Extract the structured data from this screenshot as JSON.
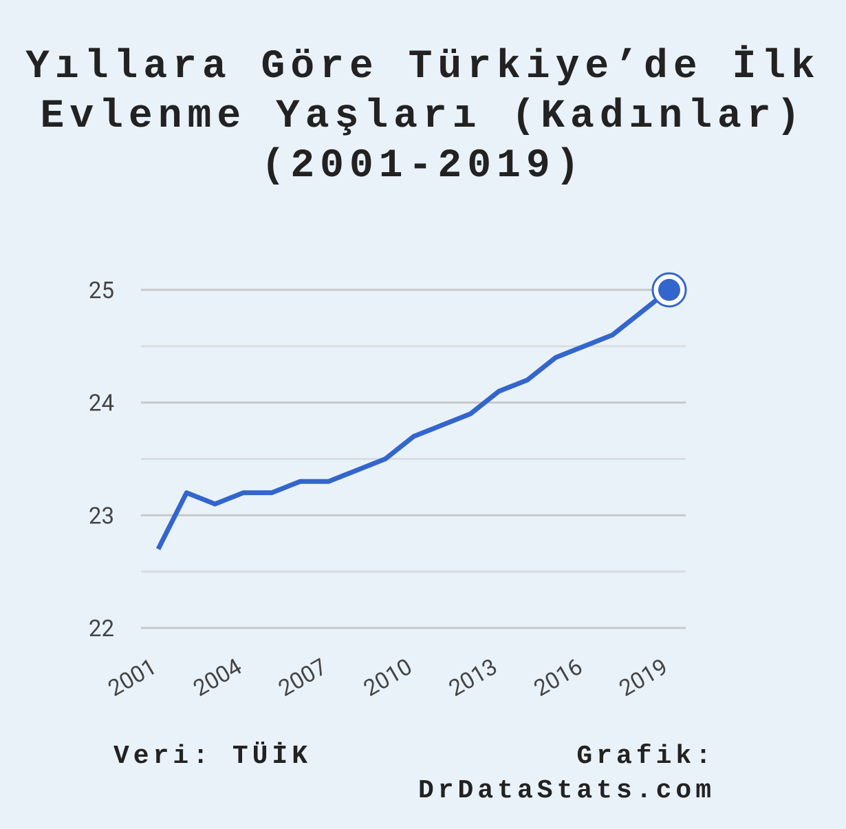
{
  "chart_data": {
    "type": "line",
    "title": [
      "Yıllara Göre Türkiye’de İlk",
      "Evlenme Yaşları (Kadınlar)",
      "(2001-2019)"
    ],
    "x": [
      2001,
      2002,
      2003,
      2004,
      2005,
      2006,
      2007,
      2008,
      2009,
      2010,
      2011,
      2012,
      2013,
      2014,
      2015,
      2016,
      2017,
      2018,
      2019
    ],
    "series": [
      {
        "name": "Kadınlar",
        "color": "#3366cc",
        "values": [
          22.7,
          23.2,
          23.1,
          23.2,
          23.2,
          23.3,
          23.3,
          23.4,
          23.5,
          23.7,
          23.8,
          23.9,
          24.1,
          24.2,
          24.4,
          24.5,
          24.6,
          24.8,
          25.0
        ]
      }
    ],
    "xlim": [
      2001,
      2019
    ],
    "xticks": [
      2001,
      2004,
      2007,
      2010,
      2013,
      2016,
      2019
    ],
    "ylim": [
      22,
      25
    ],
    "yticks": [
      22,
      23,
      24,
      25
    ],
    "minor_yticks": [
      22.5,
      23.5,
      24.5
    ],
    "grid": true,
    "highlight_last": true,
    "source": [
      "Veri: TÜİK"
    ],
    "credit": [
      "Grafik:",
      "DrDataStats.com"
    ]
  }
}
